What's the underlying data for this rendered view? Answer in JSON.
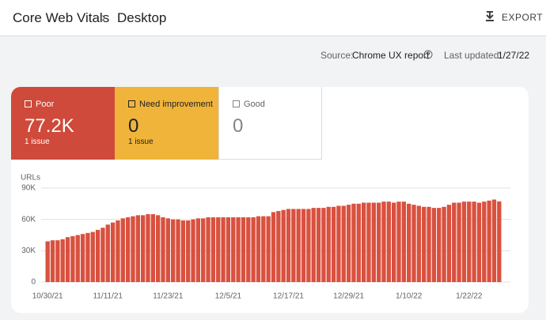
{
  "header": {
    "breadcrumb": [
      "Core Web Vitals",
      "Desktop"
    ],
    "export": "EXPORT"
  },
  "meta": {
    "source_label": "Source:",
    "source": "Chrome UX report",
    "updated_label": "Last updated:",
    "updated": "1/27/22"
  },
  "cards": [
    {
      "label": "Poor",
      "value": "77.2K",
      "issues": "1 issue"
    },
    {
      "label": "Need improvement",
      "value": "0",
      "issues": "1 issue"
    },
    {
      "label": "Good",
      "value": "0"
    }
  ],
  "chart_data": {
    "type": "bar",
    "y_label": "URLs",
    "color": "#d9513f",
    "grid": true,
    "categories": [
      "10/30/21",
      null,
      null,
      null,
      null,
      null,
      null,
      null,
      null,
      null,
      null,
      null,
      "11/11/21",
      null,
      null,
      null,
      null,
      null,
      null,
      null,
      null,
      null,
      null,
      null,
      "11/23/21",
      null,
      null,
      null,
      null,
      null,
      null,
      null,
      null,
      null,
      null,
      null,
      "12/5/21",
      null,
      null,
      null,
      null,
      null,
      null,
      null,
      null,
      null,
      null,
      null,
      "12/17/21",
      null,
      null,
      null,
      null,
      null,
      null,
      null,
      null,
      null,
      null,
      null,
      "12/29/21",
      null,
      null,
      null,
      null,
      null,
      null,
      null,
      null,
      null,
      null,
      null,
      "1/10/22",
      null,
      null,
      null,
      null,
      null,
      null,
      null,
      null,
      null,
      null,
      null,
      "1/22/22",
      null,
      null,
      null,
      null,
      null,
      null
    ],
    "values": [
      39000,
      40000,
      40000,
      41000,
      43000,
      44000,
      45000,
      46000,
      47000,
      48000,
      50000,
      52000,
      55000,
      57000,
      59000,
      61000,
      62000,
      63000,
      64000,
      64000,
      65000,
      65000,
      64000,
      62000,
      61000,
      60000,
      60000,
      59000,
      59000,
      60000,
      61000,
      61000,
      62000,
      62000,
      62000,
      62000,
      62000,
      62000,
      62000,
      62000,
      62000,
      62000,
      63000,
      63000,
      63000,
      67000,
      68000,
      69000,
      70000,
      70000,
      70000,
      70000,
      70000,
      71000,
      71000,
      71000,
      72000,
      72000,
      73000,
      73000,
      74000,
      75000,
      75000,
      76000,
      76000,
      76000,
      76000,
      77000,
      77000,
      76000,
      77000,
      77000,
      75000,
      74000,
      73000,
      72000,
      72000,
      71000,
      71000,
      72000,
      74000,
      76000,
      76000,
      77000,
      77000,
      77000,
      76000,
      77000,
      78000,
      79000,
      77200
    ],
    "ylim": [
      0,
      90000
    ],
    "yticks": [
      0,
      {
        "value": 30000,
        "label": "30K"
      },
      {
        "value": 60000,
        "label": "60K"
      },
      {
        "value": 90000,
        "label": "90K"
      }
    ]
  }
}
